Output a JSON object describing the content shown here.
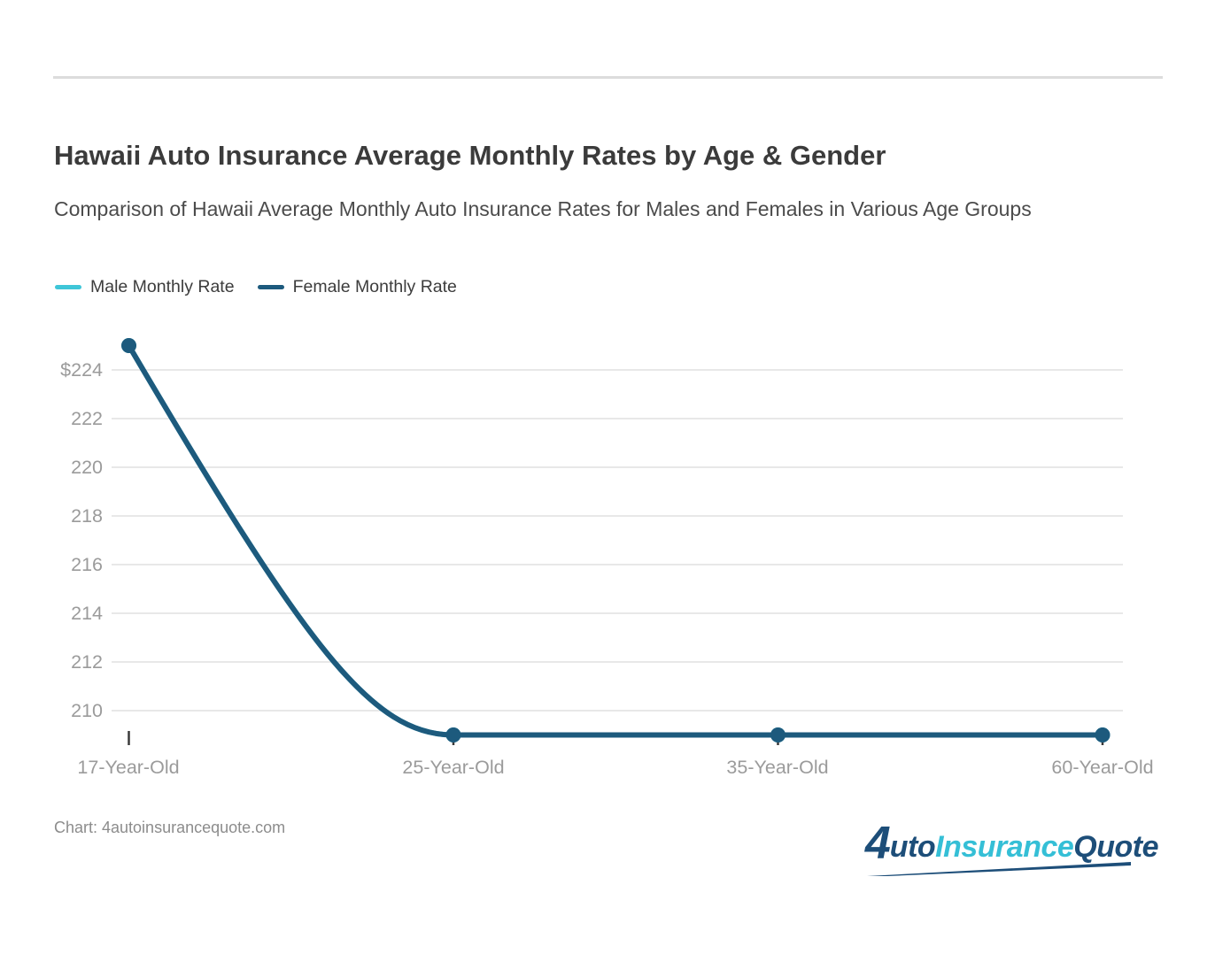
{
  "chart_data": {
    "type": "line",
    "title": "Hawaii Auto Insurance Average Monthly Rates by Age & Gender",
    "subtitle": "Comparison of Hawaii Average Monthly Auto Insurance Rates for Males and Females in Various Age Groups",
    "source_note": "Chart: 4autoinsurancequote.com",
    "categories": [
      "17-Year-Old",
      "25-Year-Old",
      "35-Year-Old",
      "60-Year-Old"
    ],
    "series": [
      {
        "name": "Male Monthly Rate",
        "color": "#3fc6d8",
        "values": [
          225,
          209,
          209,
          209
        ]
      },
      {
        "name": "Female Monthly Rate",
        "color": "#1d5a7d",
        "values": [
          225,
          209,
          209,
          209
        ]
      }
    ],
    "xlabel": "",
    "ylabel": "",
    "ytick_labels": [
      "$224",
      "222",
      "220",
      "218",
      "216",
      "214",
      "212",
      "210"
    ],
    "ytick_values": [
      224,
      222,
      220,
      218,
      216,
      214,
      212,
      210
    ],
    "ylim": [
      208.9,
      225.2
    ],
    "grid": true,
    "legend_position": "top-left",
    "grid_color": "#e8e8e8",
    "axis_tick_color": "#3a3a3a",
    "axis_label_color": "#9b9b9b"
  },
  "logo": {
    "mark": "4",
    "part_auto": "uto",
    "part_insurance": "Insurance",
    "part_quote": "Quote",
    "dark_color": "#1d4e79",
    "accent_color": "#35bfd6"
  }
}
